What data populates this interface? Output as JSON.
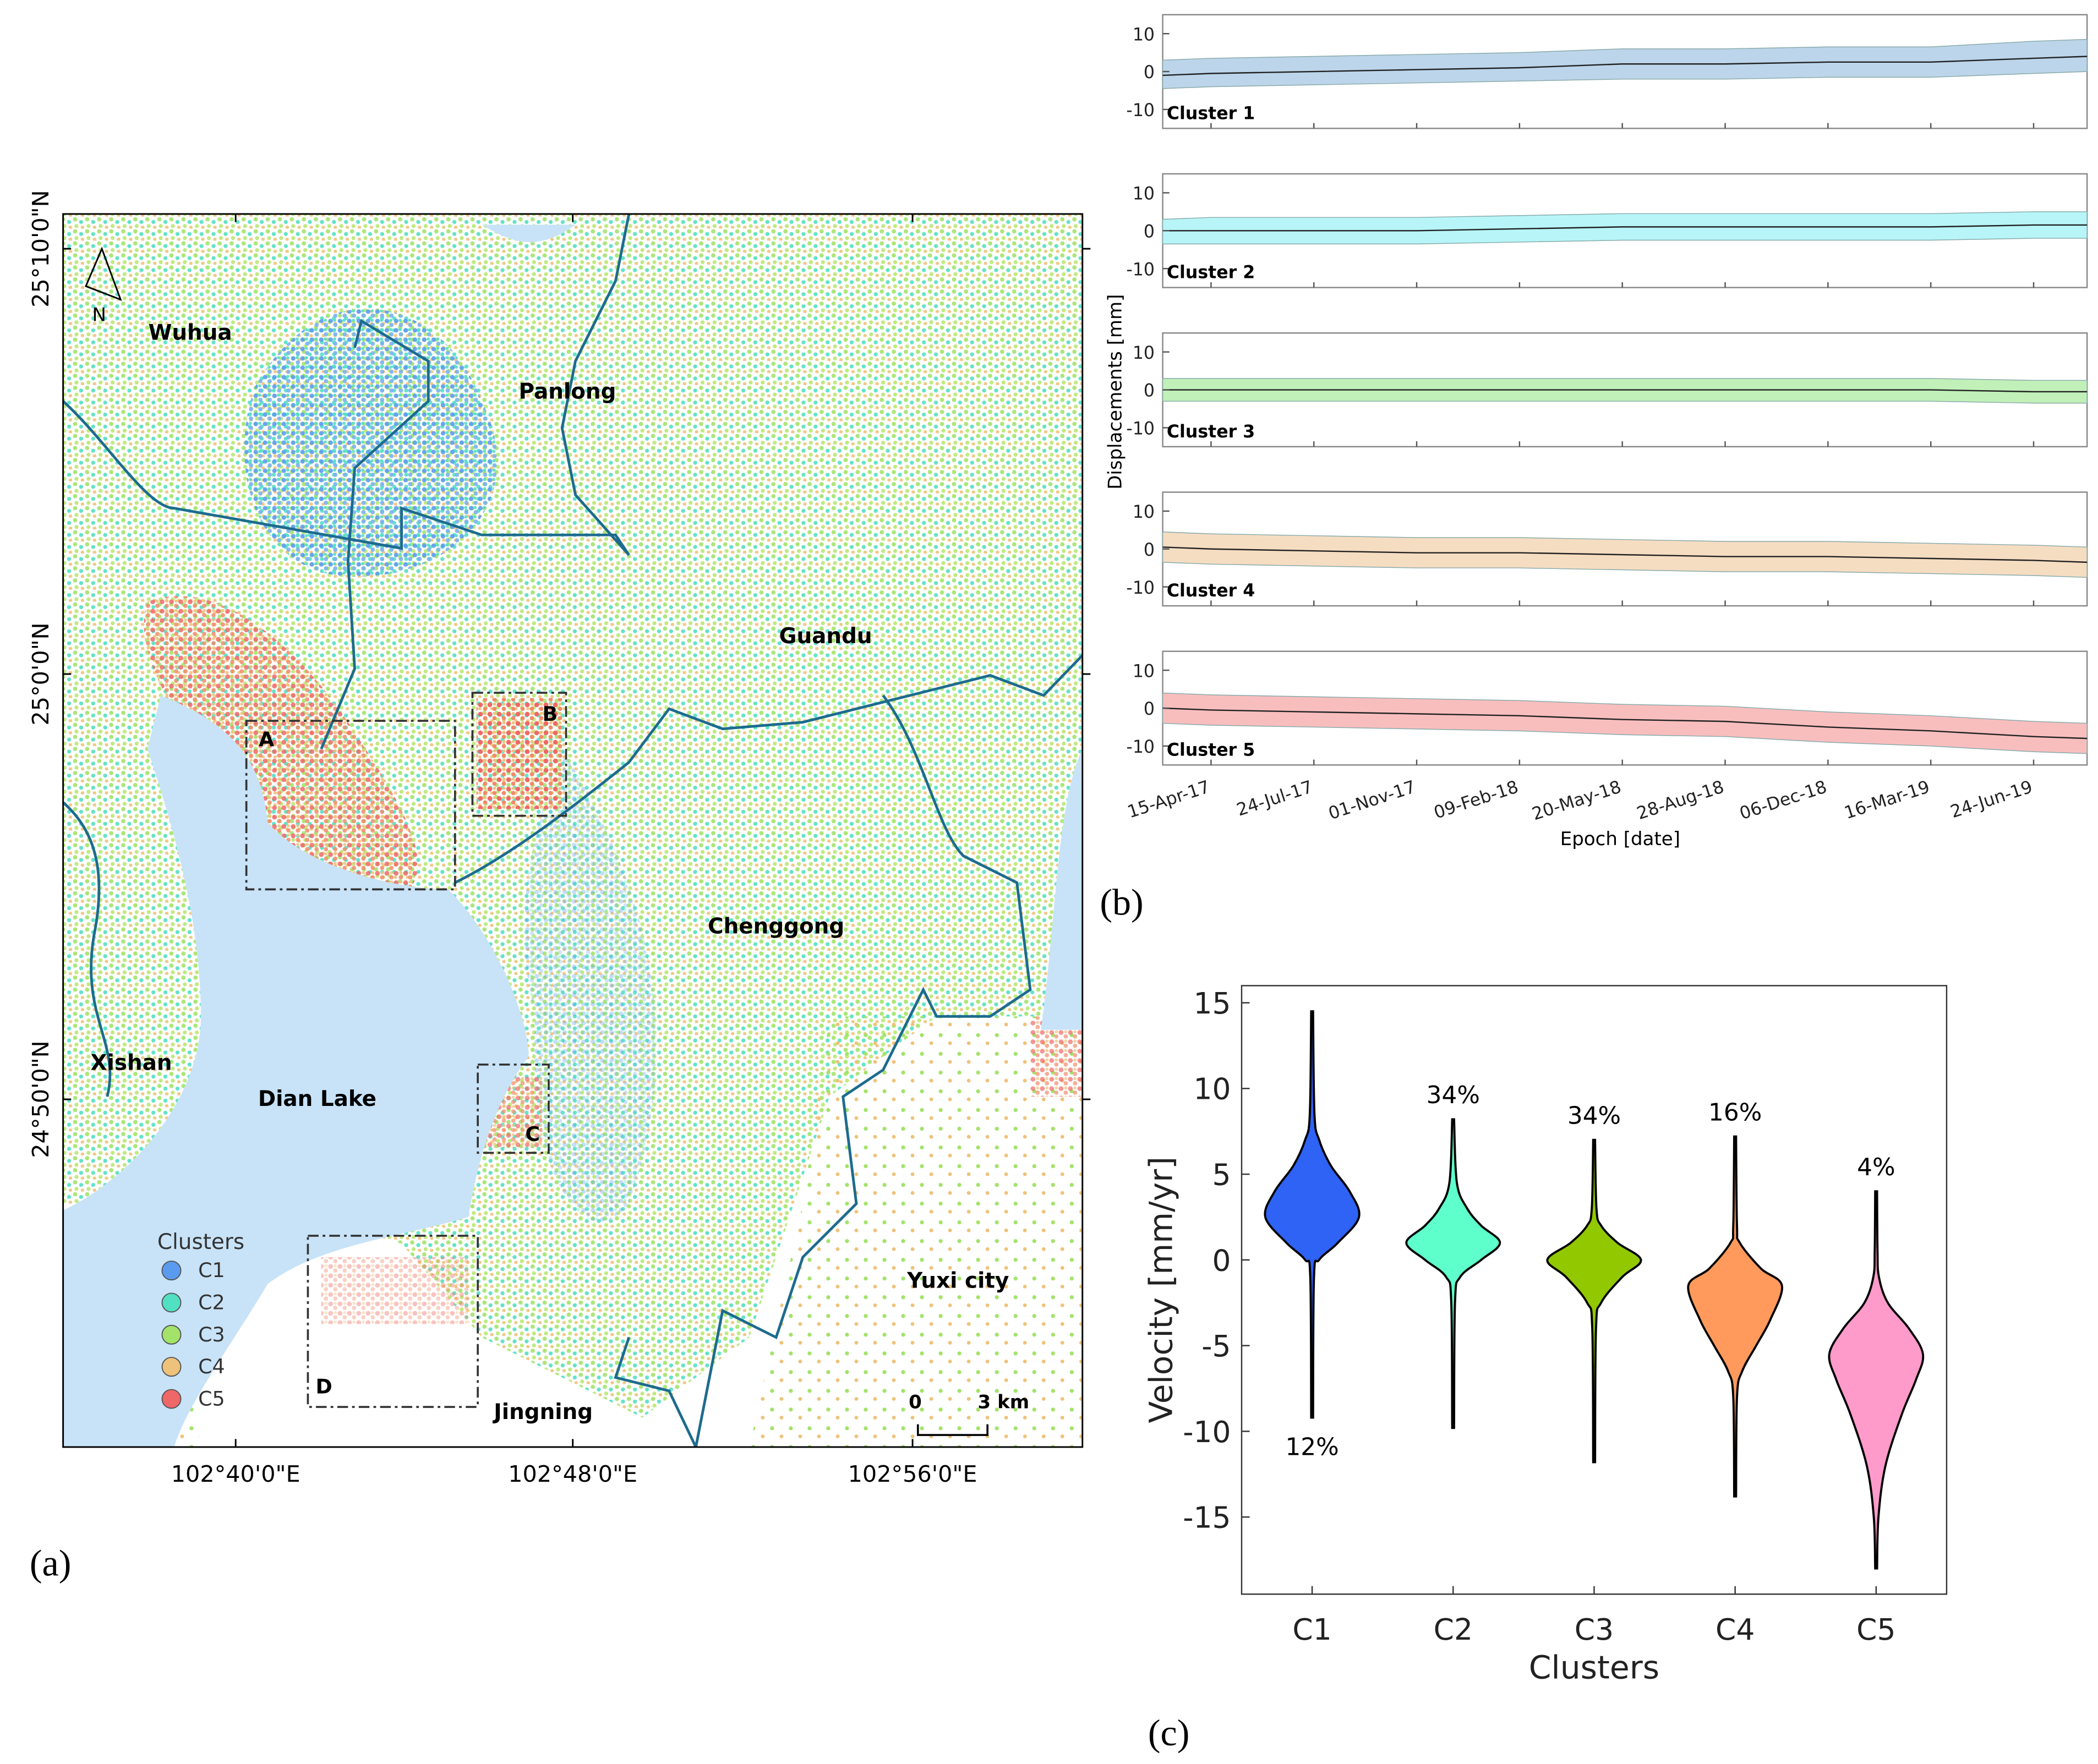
{
  "panel_labels": [
    "(a)",
    "(b)",
    "(c)"
  ],
  "chart_data": [
    {
      "type": "map",
      "lat_ticks": [
        "25°10'0\"N",
        "25°0'0\"N",
        "24°50'0\"N"
      ],
      "lon_ticks": [
        "102°40'0\"E",
        "102°48'0\"E",
        "102°56'0\"E"
      ],
      "place_labels": [
        "Wuhua",
        "Panlong",
        "Guandu",
        "Chenggong",
        "Xishan",
        "Dian Lake",
        "Yuxi city",
        "Jingning"
      ],
      "box_labels": [
        "A",
        "B",
        "C",
        "D"
      ],
      "north": "N",
      "scale_labels": [
        "0",
        "3 km"
      ],
      "legend": {
        "title": "Clusters",
        "items": [
          {
            "name": "C1",
            "color": "#5b9bef"
          },
          {
            "name": "C2",
            "color": "#52e0c2"
          },
          {
            "name": "C3",
            "color": "#a3e36a"
          },
          {
            "name": "C4",
            "color": "#eec27a"
          },
          {
            "name": "C5",
            "color": "#f06767"
          }
        ]
      }
    },
    {
      "type": "band",
      "ylabel": "Displacements [mm]",
      "xlabel": "Epoch [date]",
      "xlim": [
        "27-Feb-17",
        "15-Aug-19"
      ],
      "xticks": [
        "15-Apr-17",
        "24-Jul-17",
        "01-Nov-17",
        "09-Feb-18",
        "20-May-18",
        "28-Aug-18",
        "06-Dec-18",
        "16-Mar-19",
        "24-Jun-19"
      ],
      "ylim": [
        -15,
        15
      ],
      "yticks": [
        -10,
        0,
        10
      ],
      "x": [
        "27-Feb-17",
        "15-Apr-17",
        "24-Jul-17",
        "01-Nov-17",
        "09-Feb-18",
        "20-May-18",
        "28-Aug-18",
        "06-Dec-18",
        "16-Mar-19",
        "24-Jun-19",
        "15-Aug-19"
      ],
      "series": [
        {
          "name": "Cluster 1",
          "color": "#bcd5ea",
          "values": [
            -1,
            -0.5,
            0,
            0.5,
            1,
            2,
            2,
            2.5,
            2.5,
            3.5,
            4
          ],
          "lower": [
            -4.5,
            -4,
            -3.5,
            -3,
            -2.5,
            -2,
            -2,
            -1.5,
            -1.5,
            -0.5,
            0
          ],
          "upper": [
            3,
            3.5,
            4,
            4.5,
            5,
            6,
            6,
            6.5,
            6.5,
            8,
            8.5
          ]
        },
        {
          "name": "Cluster 2",
          "color": "#b7f5f8",
          "values": [
            0,
            0,
            0,
            0,
            0.5,
            1,
            1,
            1,
            1,
            1.5,
            1.5
          ],
          "lower": [
            -3.5,
            -3.5,
            -3.5,
            -3.5,
            -3,
            -2.5,
            -2.5,
            -2.5,
            -2.5,
            -2,
            -2
          ],
          "upper": [
            3,
            3.5,
            3.5,
            3.5,
            4,
            4.5,
            4.5,
            4.5,
            4.5,
            5,
            5
          ]
        },
        {
          "name": "Cluster 3",
          "color": "#c1f0b9",
          "values": [
            0,
            0,
            0,
            0,
            0,
            0,
            0,
            0,
            0,
            -0.5,
            -0.5
          ],
          "lower": [
            -3,
            -3,
            -3,
            -3,
            -3,
            -3,
            -3,
            -3,
            -3,
            -3.5,
            -3.5
          ],
          "upper": [
            3,
            3,
            3,
            3,
            3,
            3,
            3,
            3,
            3,
            2.5,
            2.5
          ]
        },
        {
          "name": "Cluster 4",
          "color": "#f5ddc2",
          "values": [
            0.5,
            0,
            -0.5,
            -1,
            -1,
            -1.5,
            -2,
            -2,
            -2.5,
            -3,
            -3.5
          ],
          "lower": [
            -3.5,
            -4,
            -4.5,
            -5,
            -5,
            -5.5,
            -6,
            -6,
            -6.5,
            -7,
            -7.5
          ],
          "upper": [
            4.5,
            4,
            3.5,
            3,
            3,
            2.5,
            2,
            2,
            1.5,
            1,
            0.5
          ]
        },
        {
          "name": "Cluster 5",
          "color": "#f8bebe",
          "values": [
            0,
            -0.5,
            -1,
            -1.5,
            -2,
            -3,
            -3.5,
            -5,
            -6,
            -7.5,
            -8
          ],
          "lower": [
            -4,
            -4.5,
            -5,
            -5.5,
            -6,
            -7,
            -7.5,
            -9,
            -10,
            -11.5,
            -12
          ],
          "upper": [
            4,
            3.5,
            3,
            2.5,
            2,
            1,
            0.5,
            -1,
            -2,
            -3.5,
            -4
          ]
        }
      ]
    },
    {
      "type": "violin",
      "ylabel": "Velocity [mm/yr]",
      "xlabel": "Clusters",
      "categories": [
        "C1",
        "C2",
        "C3",
        "C4",
        "C5"
      ],
      "ylim": [
        -19.5,
        16
      ],
      "yticks": [
        -15,
        -10,
        -5,
        0,
        5,
        10,
        15
      ],
      "shares": [
        12,
        34,
        34,
        16,
        4
      ],
      "share_labels": [
        "12%",
        "34%",
        "34%",
        "16%",
        "4%"
      ],
      "violins": [
        {
          "color": "#2e63f5",
          "min": -9.2,
          "max": 14.5,
          "points": [
            -9.2,
            -1,
            0,
            1,
            2.5,
            4,
            5.5,
            7,
            8.5,
            14.5
          ],
          "density": [
            0.02,
            0.04,
            0.15,
            0.55,
            1,
            0.8,
            0.4,
            0.15,
            0.05,
            0.02
          ]
        },
        {
          "color": "#5effcb",
          "min": -9.8,
          "max": 8.2,
          "points": [
            -9.8,
            -2.5,
            -1,
            0,
            1,
            2,
            3,
            4.5,
            8.2
          ],
          "density": [
            0.02,
            0.04,
            0.15,
            0.6,
            1,
            0.6,
            0.3,
            0.08,
            0.02
          ]
        },
        {
          "color": "#92c800",
          "min": -11.8,
          "max": 7,
          "points": [
            -11.8,
            -4,
            -2.5,
            -1,
            0,
            1,
            2,
            3,
            7
          ],
          "density": [
            0.02,
            0.04,
            0.15,
            0.6,
            1,
            0.5,
            0.15,
            0.05,
            0.02
          ]
        },
        {
          "color": "#ff9a5c",
          "min": -13.8,
          "max": 7.2,
          "points": [
            -13.8,
            -8,
            -6.5,
            -5,
            -3.5,
            -1.5,
            -0.5,
            1,
            2,
            7.2
          ],
          "density": [
            0.02,
            0.04,
            0.15,
            0.45,
            0.75,
            1,
            0.55,
            0.1,
            0.04,
            0.02
          ]
        },
        {
          "color": "#ff9bcb",
          "min": -18,
          "max": 4,
          "points": [
            -18,
            -15,
            -12,
            -9,
            -7,
            -5.5,
            -4,
            -2.5,
            -1,
            0.5,
            4
          ],
          "density": [
            0.02,
            0.05,
            0.2,
            0.55,
            0.85,
            1,
            0.7,
            0.25,
            0.06,
            0.03,
            0.02
          ]
        }
      ]
    }
  ]
}
